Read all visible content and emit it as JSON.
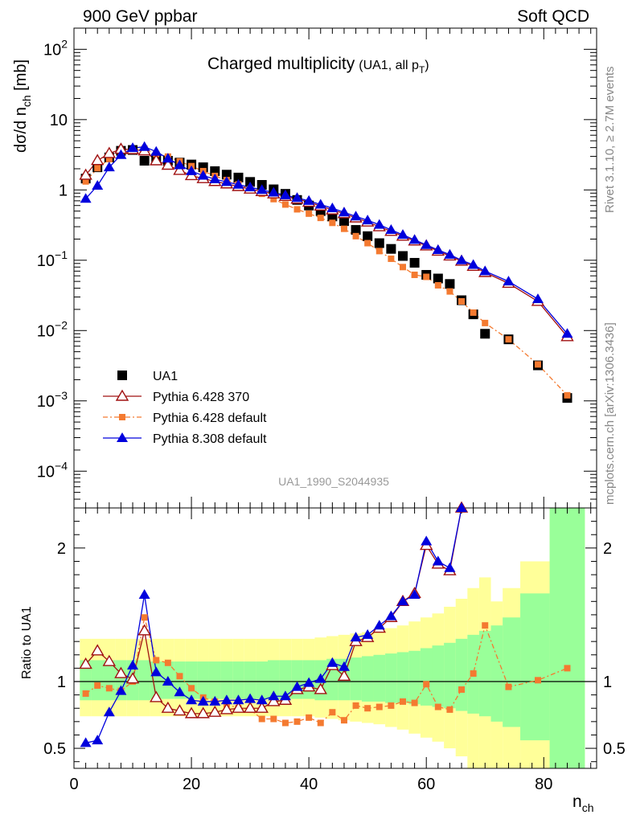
{
  "header": {
    "left": "900 GeV ppbar",
    "right": "Soft QCD"
  },
  "side_labels": {
    "rivet": "Rivet 3.1.10, ≥ 2.7M events",
    "source": "mcplots.cern.ch [arXiv:1306.3436]"
  },
  "chart_data": {
    "type": "scatter",
    "title_main": "Charged multiplicity",
    "title_sub": "(UA1, all p",
    "title_sub_index": "T",
    "title_sub_close": ")",
    "watermark": "UA1_1990_S2044935",
    "xlabel_main": "n",
    "xlabel_sub": "ch",
    "ylabel": "dσ/d n",
    "ylabel_sub": "ch",
    "ylabel_unit": " [mb]",
    "ratio_ylabel": "Ratio to UA1",
    "x_range": [
      0,
      89
    ],
    "y_range_log": [
      3e-05,
      200
    ],
    "ratio_range": [
      0.35,
      2.3
    ],
    "y_log": true,
    "x_ticks": [
      0,
      20,
      40,
      60,
      80
    ],
    "y_ticks_main": [
      {
        "value": 100,
        "base": "10",
        "exp": "2"
      },
      {
        "value": 10,
        "base": "10",
        "exp": ""
      },
      {
        "value": 1,
        "base": "1",
        "exp": ""
      },
      {
        "value": 0.1,
        "base": "10",
        "exp": "−1"
      },
      {
        "value": 0.01,
        "base": "10",
        "exp": "−2"
      },
      {
        "value": 0.001,
        "base": "10",
        "exp": "−3"
      },
      {
        "value": 0.0001,
        "base": "10",
        "exp": "−4"
      }
    ],
    "ratio_ticks": [
      {
        "value": 2,
        "label": "2"
      },
      {
        "value": 1,
        "label": "1"
      },
      {
        "value": 0.5,
        "label": "0.5"
      }
    ],
    "legend": [
      "UA1",
      "Pythia 6.428 370",
      "Pythia 6.428 default",
      "Pythia 8.308 default"
    ],
    "colors": {
      "data": "#000000",
      "p370": "#a01010",
      "pdefault": "#f47a30",
      "p8": "#0000dd",
      "band_inner": "#99ff99",
      "band_outer": "#ffff99"
    },
    "series": [
      {
        "name": "UA1",
        "x": [
          2,
          4,
          6,
          8,
          10,
          12,
          14,
          16,
          18,
          20,
          22,
          24,
          26,
          28,
          30,
          32,
          34,
          36,
          38,
          40,
          42,
          44,
          46,
          48,
          50,
          52,
          54,
          56,
          58,
          60,
          62,
          64,
          66,
          68,
          70,
          74,
          79,
          84
        ],
        "y": [
          1.45,
          2.1,
          2.9,
          3.6,
          3.7,
          2.6,
          2.8,
          2.6,
          2.45,
          2.3,
          2.1,
          1.85,
          1.65,
          1.5,
          1.3,
          1.18,
          1.02,
          0.88,
          0.72,
          0.6,
          0.5,
          0.42,
          0.36,
          0.27,
          0.22,
          0.175,
          0.145,
          0.115,
          0.092,
          0.062,
          0.055,
          0.046,
          0.027,
          0.017,
          0.009,
          0.0075,
          0.0032,
          0.0011
        ]
      },
      {
        "name": "Pythia 6.428 370",
        "x": [
          2,
          4,
          6,
          8,
          10,
          12,
          14,
          16,
          18,
          20,
          22,
          24,
          26,
          28,
          30,
          32,
          34,
          36,
          38,
          40,
          42,
          44,
          46,
          48,
          50,
          52,
          54,
          56,
          58,
          60,
          62,
          64,
          66,
          68,
          70,
          74,
          79,
          84
        ],
        "y": [
          1.62,
          2.62,
          3.3,
          3.8,
          3.75,
          3.6,
          2.6,
          2.25,
          1.9,
          1.6,
          1.45,
          1.32,
          1.22,
          1.12,
          1.03,
          0.95,
          0.88,
          0.81,
          0.74,
          0.67,
          0.59,
          0.52,
          0.46,
          0.4,
          0.35,
          0.3,
          0.258,
          0.22,
          0.188,
          0.16,
          0.135,
          0.115,
          0.097,
          0.082,
          0.067,
          0.047,
          0.026,
          0.0082
        ]
      },
      {
        "name": "Pythia 6.428 default",
        "x": [
          2,
          4,
          6,
          8,
          10,
          12,
          14,
          16,
          18,
          20,
          22,
          24,
          26,
          28,
          30,
          32,
          34,
          36,
          38,
          40,
          42,
          44,
          46,
          48,
          50,
          52,
          54,
          56,
          58,
          60,
          62,
          64,
          66,
          68,
          70,
          74,
          79,
          84
        ],
        "y": [
          1.32,
          2.04,
          2.75,
          3.4,
          3.6,
          3.85,
          3.25,
          2.98,
          2.55,
          2.18,
          1.85,
          1.58,
          1.38,
          1.2,
          1.03,
          0.88,
          0.74,
          0.62,
          0.53,
          0.46,
          0.4,
          0.34,
          0.28,
          0.22,
          0.175,
          0.135,
          0.105,
          0.08,
          0.062,
          0.058,
          0.044,
          0.036,
          0.026,
          0.018,
          0.0128,
          0.0075,
          0.0033,
          0.0012
        ]
      },
      {
        "name": "Pythia 8.308 default",
        "x": [
          2,
          4,
          6,
          8,
          10,
          12,
          14,
          16,
          18,
          20,
          22,
          24,
          26,
          28,
          30,
          32,
          34,
          36,
          38,
          40,
          42,
          44,
          46,
          48,
          50,
          52,
          54,
          56,
          58,
          60,
          62,
          64,
          66,
          68,
          70,
          74,
          79,
          84
        ],
        "y": [
          0.75,
          1.15,
          2.1,
          3.15,
          3.95,
          4.1,
          3.5,
          2.8,
          2.25,
          1.85,
          1.6,
          1.42,
          1.3,
          1.19,
          1.09,
          1.0,
          0.92,
          0.84,
          0.77,
          0.7,
          0.62,
          0.55,
          0.48,
          0.42,
          0.37,
          0.32,
          0.27,
          0.23,
          0.195,
          0.165,
          0.14,
          0.12,
          0.1,
          0.086,
          0.07,
          0.05,
          0.028,
          0.009
        ]
      }
    ],
    "ratios": [
      {
        "name": "Pythia 6.428 370",
        "x": [
          2,
          4,
          6,
          8,
          10,
          12,
          14,
          16,
          18,
          20,
          22,
          24,
          26,
          28,
          30,
          32,
          34,
          36,
          38,
          40,
          42,
          44,
          46,
          48,
          50,
          52,
          54,
          56,
          58,
          60,
          62,
          64,
          66
        ],
        "y": [
          1.13,
          1.23,
          1.15,
          1.06,
          1.02,
          1.38,
          0.88,
          0.8,
          0.78,
          0.76,
          0.76,
          0.77,
          0.79,
          0.8,
          0.8,
          0.8,
          0.85,
          0.86,
          0.94,
          0.96,
          0.94,
          1.12,
          1.04,
          1.3,
          1.33,
          1.4,
          1.48,
          1.6,
          1.66,
          2.02,
          1.88,
          1.83,
          2.3
        ]
      },
      {
        "name": "Pythia 6.428 default",
        "x": [
          2,
          4,
          6,
          8,
          10,
          12,
          14,
          16,
          18,
          20,
          22,
          24,
          26,
          28,
          30,
          32,
          34,
          36,
          38,
          40,
          42,
          44,
          46,
          48,
          50,
          52,
          54,
          56,
          58,
          60,
          62,
          64,
          66,
          68,
          70,
          74,
          79,
          84
        ],
        "y": [
          0.91,
          0.97,
          0.95,
          0.93,
          1.0,
          1.48,
          1.16,
          1.14,
          1.04,
          0.95,
          0.88,
          0.85,
          0.83,
          0.8,
          0.79,
          0.72,
          0.72,
          0.69,
          0.7,
          0.73,
          0.69,
          0.77,
          0.71,
          0.82,
          0.8,
          0.81,
          0.82,
          0.85,
          0.84,
          0.98,
          0.81,
          0.79,
          0.94,
          1.06,
          1.42,
          0.96,
          1.01,
          1.1
        ]
      },
      {
        "name": "Pythia 8.308 default",
        "x": [
          2,
          4,
          6,
          8,
          10,
          12,
          14,
          16,
          18,
          20,
          22,
          24,
          26,
          28,
          30,
          32,
          34,
          36,
          38,
          40,
          42,
          44,
          46,
          48,
          50,
          52,
          54,
          56,
          58,
          60,
          62,
          64,
          66
        ],
        "y": [
          0.54,
          0.56,
          0.77,
          0.93,
          1.12,
          1.65,
          1.07,
          1.0,
          0.92,
          0.86,
          0.85,
          0.85,
          0.86,
          0.86,
          0.87,
          0.86,
          0.89,
          0.89,
          0.96,
          0.99,
          1.02,
          1.14,
          1.11,
          1.33,
          1.35,
          1.42,
          1.49,
          1.6,
          1.65,
          2.05,
          1.9,
          1.85,
          2.3
        ]
      }
    ],
    "bands": {
      "x_edges": [
        1,
        3,
        5,
        7,
        9,
        11,
        13,
        15,
        17,
        19,
        21,
        23,
        25,
        27,
        29,
        31,
        33,
        35,
        37,
        39,
        41,
        43,
        45,
        47,
        49,
        51,
        53,
        55,
        57,
        59,
        61,
        63,
        65,
        67,
        69,
        71,
        73,
        76,
        81,
        87
      ],
      "inner": [
        [
          0.86,
          1.16
        ],
        [
          0.86,
          1.16
        ],
        [
          0.86,
          1.16
        ],
        [
          0.86,
          1.16
        ],
        [
          0.86,
          1.16
        ],
        [
          0.86,
          1.16
        ],
        [
          0.87,
          1.15
        ],
        [
          0.87,
          1.15
        ],
        [
          0.87,
          1.15
        ],
        [
          0.87,
          1.15
        ],
        [
          0.87,
          1.15
        ],
        [
          0.87,
          1.15
        ],
        [
          0.87,
          1.15
        ],
        [
          0.87,
          1.15
        ],
        [
          0.87,
          1.15
        ],
        [
          0.87,
          1.15
        ],
        [
          0.87,
          1.16
        ],
        [
          0.87,
          1.16
        ],
        [
          0.87,
          1.16
        ],
        [
          0.87,
          1.16
        ],
        [
          0.86,
          1.16
        ],
        [
          0.86,
          1.17
        ],
        [
          0.86,
          1.17
        ],
        [
          0.86,
          1.18
        ],
        [
          0.85,
          1.19
        ],
        [
          0.85,
          1.2
        ],
        [
          0.84,
          1.21
        ],
        [
          0.84,
          1.22
        ],
        [
          0.83,
          1.23
        ],
        [
          0.82,
          1.25
        ],
        [
          0.81,
          1.27
        ],
        [
          0.8,
          1.29
        ],
        [
          0.78,
          1.32
        ],
        [
          0.76,
          1.35
        ],
        [
          0.74,
          1.38
        ],
        [
          0.7,
          1.42
        ],
        [
          0.66,
          1.48
        ],
        [
          0.56,
          1.66
        ],
        [
          0.3,
          2.3
        ]
      ],
      "outer": [
        [
          0.74,
          1.32
        ],
        [
          0.74,
          1.32
        ],
        [
          0.74,
          1.32
        ],
        [
          0.74,
          1.32
        ],
        [
          0.74,
          1.32
        ],
        [
          0.74,
          1.32
        ],
        [
          0.74,
          1.32
        ],
        [
          0.74,
          1.32
        ],
        [
          0.74,
          1.32
        ],
        [
          0.74,
          1.32
        ],
        [
          0.74,
          1.32
        ],
        [
          0.74,
          1.32
        ],
        [
          0.74,
          1.32
        ],
        [
          0.74,
          1.32
        ],
        [
          0.74,
          1.32
        ],
        [
          0.74,
          1.32
        ],
        [
          0.74,
          1.32
        ],
        [
          0.74,
          1.32
        ],
        [
          0.74,
          1.32
        ],
        [
          0.74,
          1.32
        ],
        [
          0.73,
          1.33
        ],
        [
          0.72,
          1.34
        ],
        [
          0.71,
          1.35
        ],
        [
          0.7,
          1.36
        ],
        [
          0.69,
          1.37
        ],
        [
          0.68,
          1.39
        ],
        [
          0.66,
          1.4
        ],
        [
          0.64,
          1.42
        ],
        [
          0.61,
          1.45
        ],
        [
          0.58,
          1.48
        ],
        [
          0.55,
          1.51
        ],
        [
          0.5,
          1.56
        ],
        [
          0.44,
          1.62
        ],
        [
          0.35,
          1.7
        ],
        [
          0.3,
          1.78
        ],
        [
          0.3,
          1.6
        ],
        [
          0.3,
          1.7
        ],
        [
          0.3,
          1.9
        ],
        [
          0.3,
          2.3
        ]
      ]
    }
  }
}
